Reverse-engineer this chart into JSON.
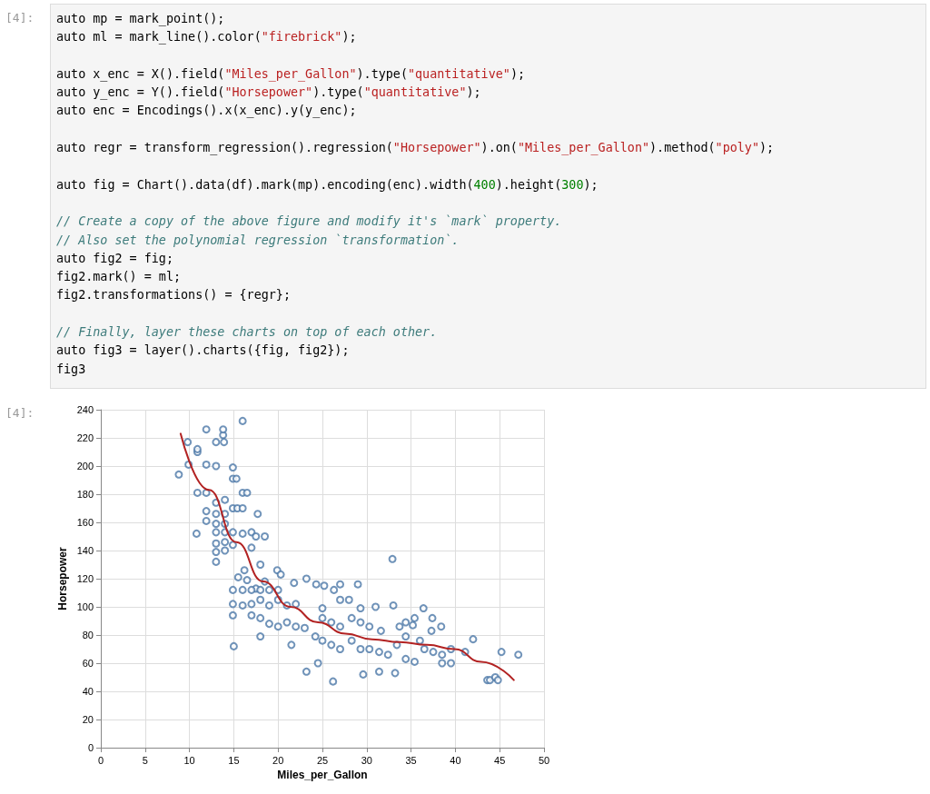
{
  "chart_data": {
    "type": "scatter",
    "xlabel": "Miles_per_Gallon",
    "ylabel": "Horsepower",
    "annotations": [
      "[4]:",
      "auto mp = mark_point();\nauto ml = mark_line().color(\"firebrick\");\n\nauto x_enc = X().field(\"Miles_per_Gallon\").type(\"quantitative\");\nauto y_enc = Y().field(\"Horsepower\").type(\"quantitative\");\nauto enc = Encodings().x(x_enc).y(y_enc);\n\nauto regr = transform_regression().regression(\"Horsepower\").on(\"Miles_per_Gallon\").method(\"poly\");\n\nauto fig = Chart().data(df).mark(mp).encoding(enc).width(400).height(300);\n\n// Create a copy of the above figure and modify it's `mark` property.\n// Also set the polynomial regression `transformation`.\nauto fig2 = fig;\nfig2.mark() = ml;\nfig2.transformations() = {regr};\n\n// Finally, layer these charts on top of each other.\nauto fig3 = layer().charts({fig, fig2});\nfig3",
      "[4]:"
    ],
    "xlim": [
      0,
      50
    ],
    "xticks": [
      0,
      5,
      10,
      15,
      20,
      25,
      30,
      35,
      40,
      45,
      50
    ],
    "ylim": [
      0,
      240
    ],
    "yticks": [
      0,
      20,
      40,
      60,
      80,
      100,
      120,
      140,
      160,
      180,
      200,
      220,
      240
    ],
    "grid": true,
    "marker": "circle",
    "series": [
      {
        "color": "#4c78a8",
        "x": [
          8.8,
          9.8,
          9.9,
          10.9,
          10.9,
          11.9,
          11.9,
          13,
          13.8,
          13.8,
          13.9,
          16,
          13,
          14.9,
          14.9,
          15.3,
          10.9,
          11.9,
          13,
          14,
          16,
          16.5,
          14.9,
          15.4,
          16,
          11.9,
          13,
          14,
          11.9,
          13,
          14,
          17.7,
          13,
          14,
          14.9,
          16,
          17,
          10.8,
          13,
          14,
          14.9,
          13,
          14,
          17,
          17.5,
          18.5,
          13,
          16.2,
          18,
          19.9,
          20.3,
          15.5,
          16.5,
          17.5,
          18.5,
          14.9,
          16,
          17,
          18,
          19,
          20,
          21.8,
          23.2,
          24.3,
          25.2,
          26.3,
          27,
          29,
          32.9,
          14.9,
          16,
          17,
          18,
          19,
          20,
          21,
          22,
          14.9,
          17,
          18,
          19,
          20,
          21,
          22,
          23,
          15,
          18,
          21.5,
          23.2,
          24.5,
          26.2,
          25,
          26,
          27,
          28.3,
          29.3,
          30.3,
          24.2,
          25,
          26,
          27,
          28.3,
          29.3,
          30.3,
          31.4,
          29.6,
          31.4,
          33.2,
          25,
          27,
          28,
          29.3,
          31,
          33,
          31.6,
          33.7,
          35.2,
          34.4,
          36,
          37.3,
          37.4,
          38.4,
          32.4,
          33.4,
          34.4,
          35.4,
          36.5,
          37.5,
          38.5,
          39.5,
          38.5,
          39.5,
          41.1,
          42,
          43.6,
          43.9,
          44.5,
          44.8,
          45.2,
          47.1,
          36.4,
          35.4,
          34.4
        ],
        "values": [
          194,
          217,
          201,
          210,
          212,
          226,
          201,
          200,
          222,
          226,
          217,
          232,
          217,
          199,
          191,
          191,
          181,
          181,
          174,
          176,
          181,
          181,
          170,
          170,
          170,
          168,
          166,
          166,
          161,
          159,
          159,
          166,
          153,
          153,
          153,
          152,
          153,
          152,
          145,
          146,
          144,
          139,
          140,
          142,
          150,
          150,
          132,
          126,
          130,
          126,
          123,
          121,
          119,
          113,
          118,
          112,
          112,
          112,
          112,
          112,
          112,
          117,
          120,
          116,
          115,
          112,
          116,
          116,
          134,
          102,
          101,
          102,
          105,
          101,
          105,
          101,
          102,
          94,
          94,
          92,
          88,
          86,
          89,
          86,
          85,
          72,
          79,
          73,
          54,
          60,
          47,
          92,
          89,
          86,
          92,
          89,
          86,
          79,
          76,
          73,
          70,
          76,
          70,
          70,
          68,
          52,
          54,
          53,
          99,
          105,
          105,
          99,
          100,
          101,
          83,
          86,
          87,
          79,
          76,
          83,
          92,
          86,
          66,
          73,
          63,
          61,
          70,
          68,
          66,
          60,
          60,
          70,
          68,
          77,
          48,
          48,
          50,
          48,
          68,
          66,
          99,
          92,
          89
        ]
      },
      {
        "type": "line",
        "color": "#b22222",
        "marker": "none",
        "x": [
          9,
          12.2,
          15.3,
          18.3,
          21.4,
          24.5,
          27.6,
          30.6,
          33.7,
          36.8,
          39.9,
          42.9,
          46.6
        ],
        "values": [
          223,
          183,
          146,
          118,
          100,
          89,
          81,
          77,
          75,
          73,
          70,
          61,
          48
        ]
      }
    ]
  }
}
